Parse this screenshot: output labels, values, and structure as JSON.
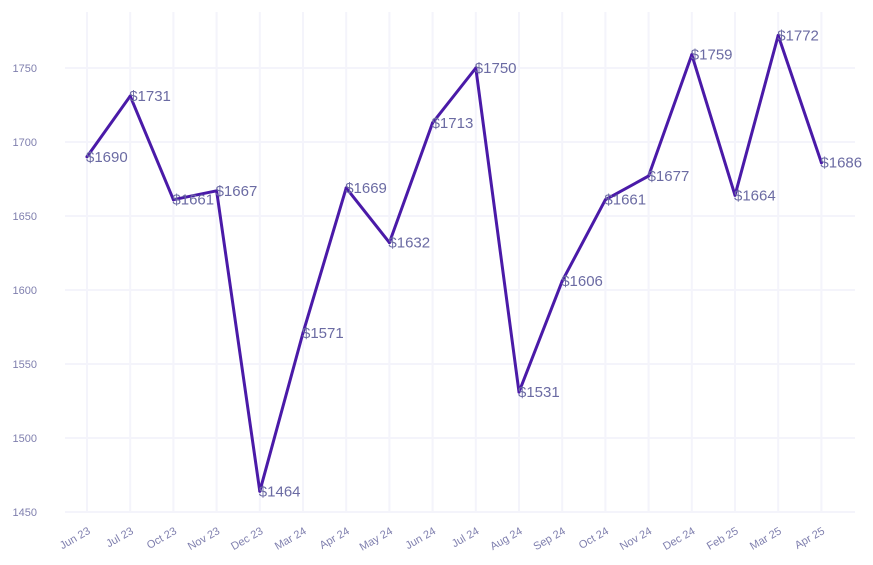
{
  "chart_data": {
    "type": "line",
    "categories": [
      "Jun 23",
      "Jul 23",
      "Oct 23",
      "Nov 23",
      "Dec 23",
      "Mar 24",
      "Apr 24",
      "May 24",
      "Jun 24",
      "Jul 24",
      "Aug 24",
      "Sep 24",
      "Oct 24",
      "Nov 24",
      "Dec 24",
      "Feb 25",
      "Mar 25",
      "Apr 25"
    ],
    "values": [
      1690,
      1731,
      1661,
      1667,
      1464,
      1571,
      1669,
      1632,
      1713,
      1750,
      1531,
      1606,
      1661,
      1677,
      1759,
      1664,
      1772,
      1686
    ],
    "data_labels": [
      "$1690",
      "$1731",
      "$1661",
      "$1667",
      "$1464",
      "$1571",
      "$1669",
      "$1632",
      "$1713",
      "$1750",
      "$1531",
      "$1606",
      "$1661",
      "$1677",
      "$1759",
      "$1664",
      "$1772",
      "$1686"
    ],
    "yticks": [
      1450,
      1500,
      1550,
      1600,
      1650,
      1700,
      1750
    ],
    "ylim": [
      1450,
      1780
    ],
    "grid": true,
    "legend": "none",
    "line_color": "#4a1aa8",
    "title": "",
    "xlabel": "",
    "ylabel": ""
  }
}
